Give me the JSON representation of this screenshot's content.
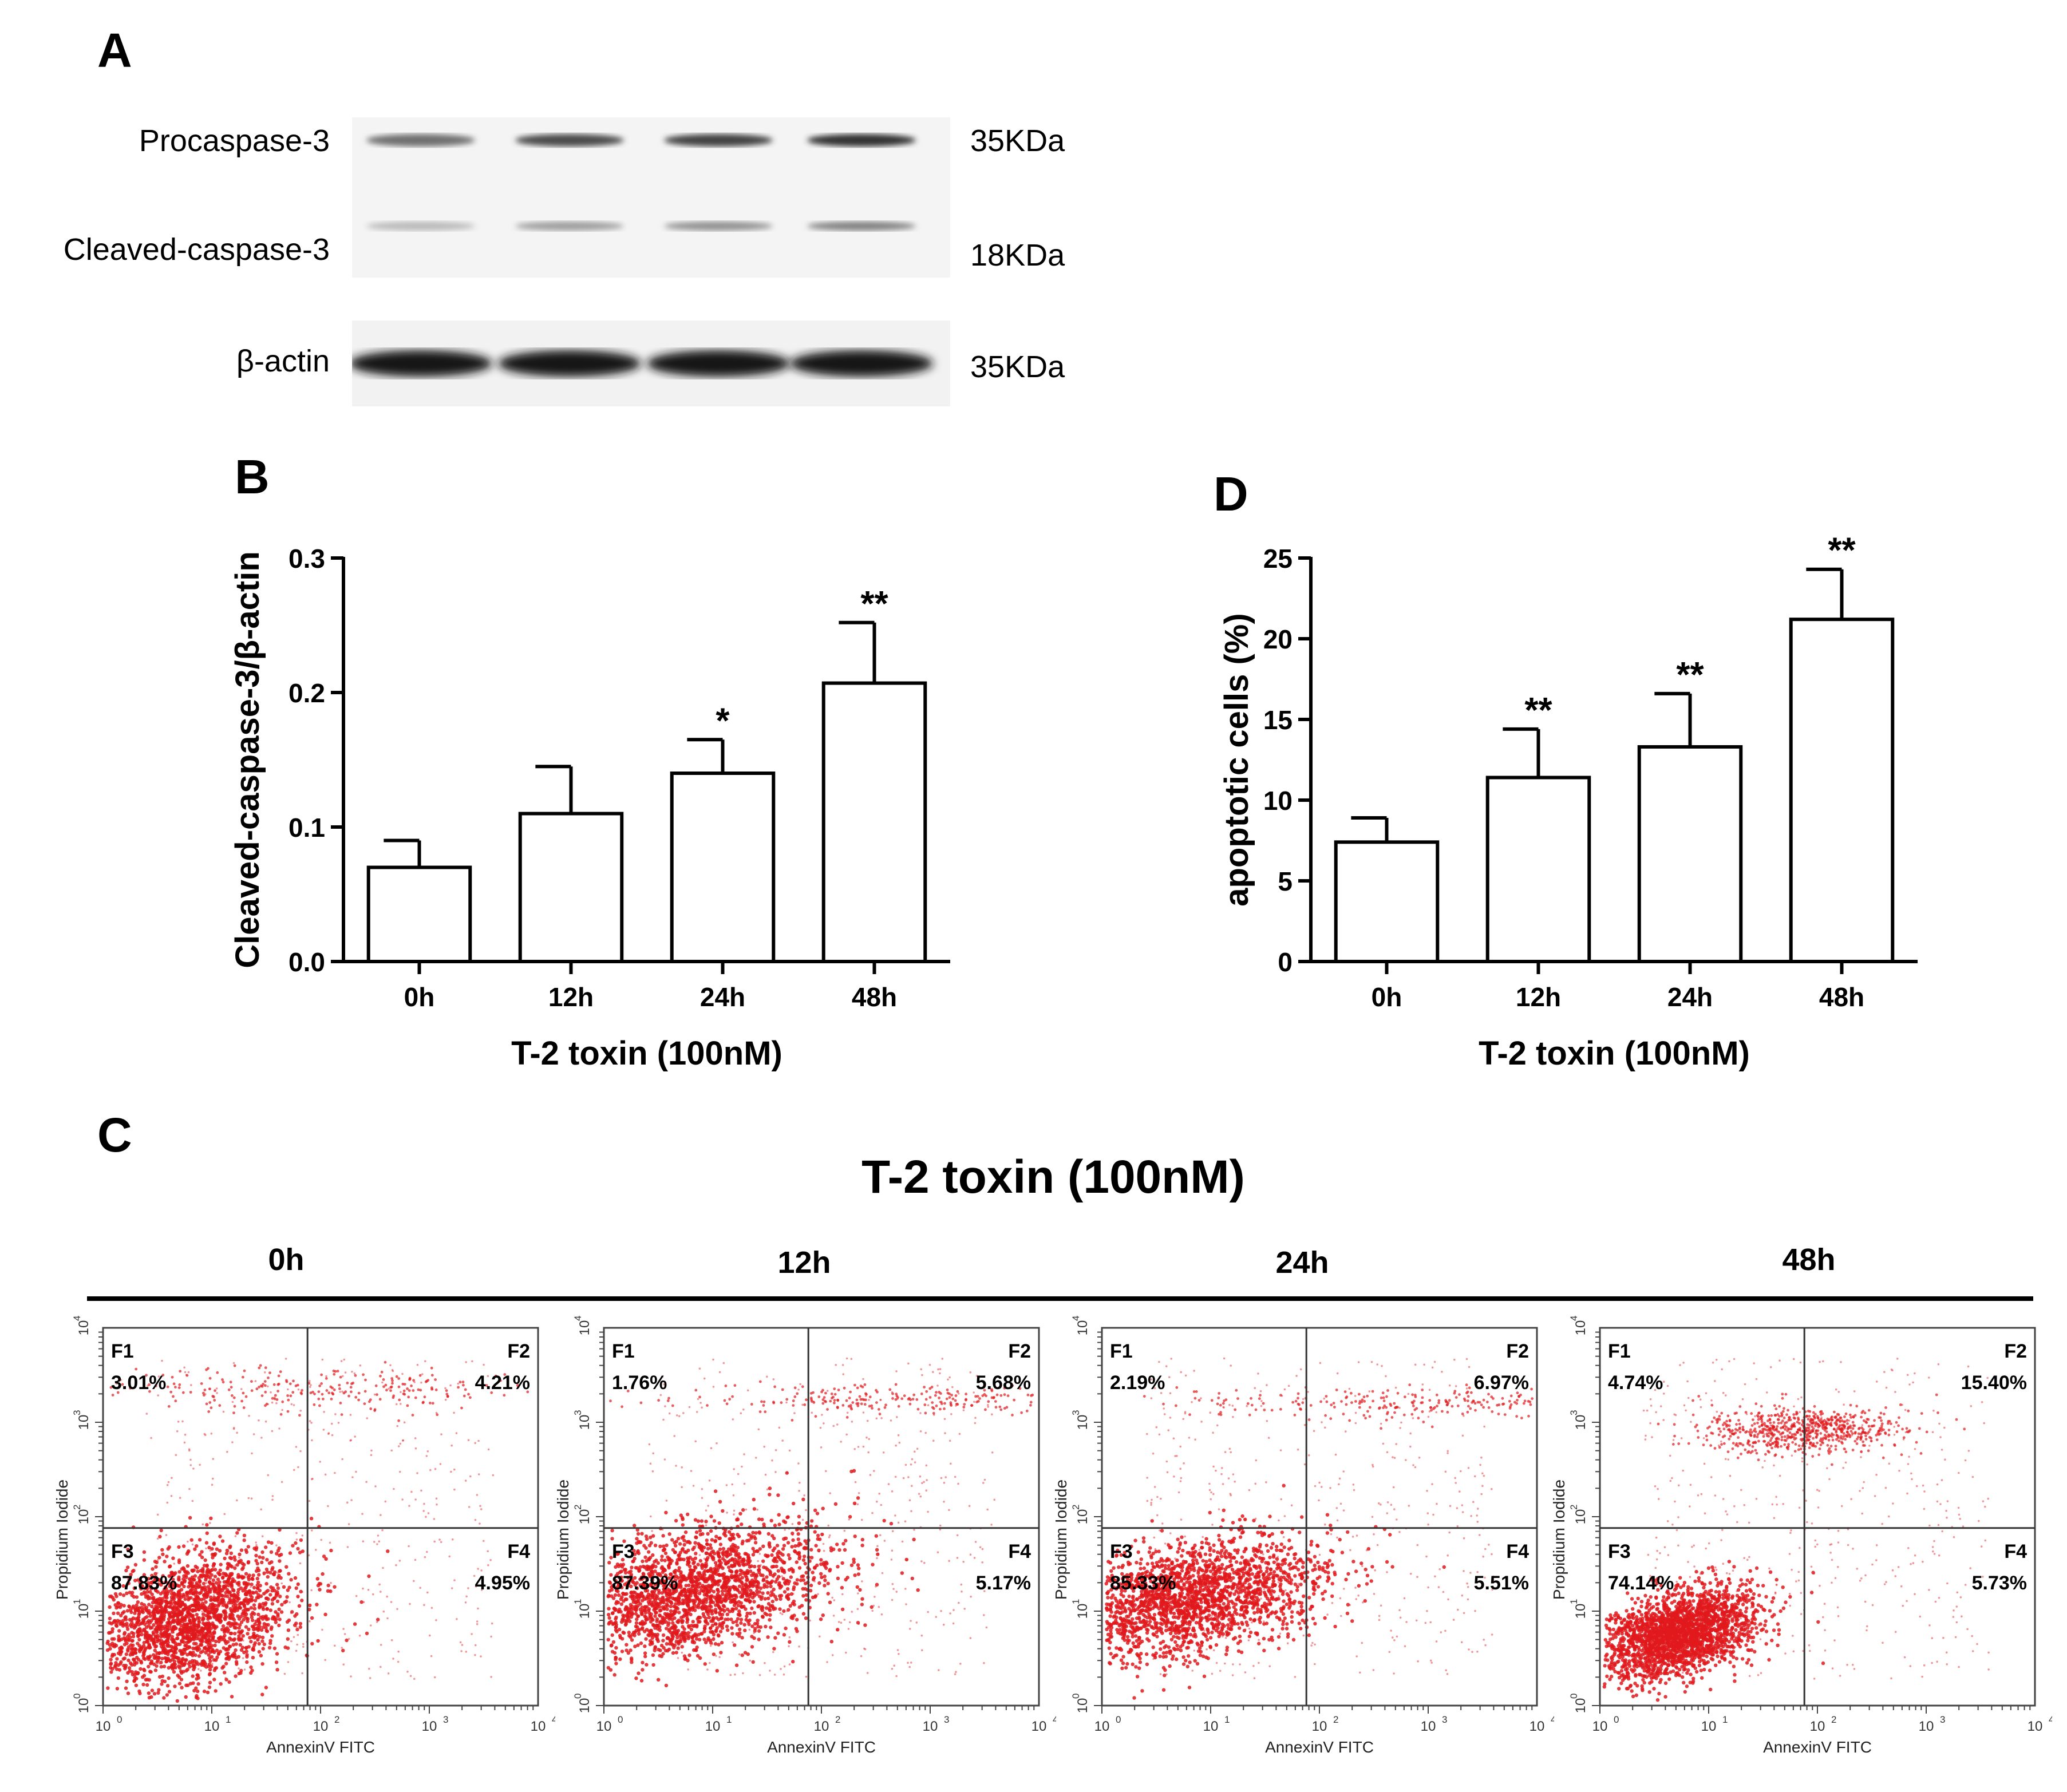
{
  "panels": {
    "a": "A",
    "b": "B",
    "c": "C",
    "d": "D"
  },
  "western_blot": {
    "rows": [
      {
        "label": "Procaspase-3",
        "size": "35KDa",
        "bands": [
          0.62,
          0.78,
          0.82,
          0.9
        ]
      },
      {
        "label": "Cleaved-caspase-3",
        "size": "18KDa",
        "bands": [
          0.3,
          0.42,
          0.48,
          0.55
        ]
      },
      {
        "label": "β-actin",
        "size": "35KDa",
        "bands": [
          1.0,
          1.0,
          1.0,
          1.0
        ]
      }
    ]
  },
  "chart_data": [
    {
      "id": "B",
      "type": "bar",
      "categories": [
        "0h",
        "12h",
        "24h",
        "48h"
      ],
      "values": [
        0.07,
        0.11,
        0.14,
        0.207
      ],
      "errors": [
        0.02,
        0.035,
        0.025,
        0.045
      ],
      "significance": [
        "",
        "",
        "*",
        "**"
      ],
      "ylabel": "Cleaved-caspase-3/β-actin",
      "xlabel": "T-2 toxin (100nM)",
      "ylim": [
        0,
        0.3
      ],
      "yticks": [
        0.0,
        0.1,
        0.2,
        0.3
      ],
      "ytick_labels": [
        "0.0",
        "0.1",
        "0.2",
        "0.3"
      ]
    },
    {
      "id": "D",
      "type": "bar",
      "categories": [
        "0h",
        "12h",
        "24h",
        "48h"
      ],
      "values": [
        7.4,
        11.4,
        13.3,
        21.2
      ],
      "errors": [
        1.5,
        3.0,
        3.3,
        3.1
      ],
      "significance": [
        "",
        "**",
        "**",
        "**"
      ],
      "ylabel": "apoptotic cells (%)",
      "xlabel": "T-2 toxin (100nM)",
      "ylim": [
        0,
        25
      ],
      "yticks": [
        0,
        5,
        10,
        15,
        20,
        25
      ],
      "ytick_labels": [
        "0",
        "5",
        "10",
        "15",
        "20",
        "25"
      ]
    }
  ],
  "flow": {
    "title": "T-2 toxin (100nM)",
    "xlabel": "AnnexinV FITC",
    "ylabel": "Propidium Iodide",
    "axis_ticks": [
      "10",
      "10",
      "10",
      "10",
      "10"
    ],
    "axis_exponents": [
      "0",
      "1",
      "2",
      "3",
      "4"
    ],
    "quadrant_names": [
      "F1",
      "F2",
      "F3",
      "F4"
    ],
    "panels": [
      {
        "time": "0h",
        "F1": "3.01%",
        "F2": "4.21%",
        "F3": "87.83%",
        "F4": "4.95%"
      },
      {
        "time": "12h",
        "F1": "1.76%",
        "F2": "5.68%",
        "F3": "87.39%",
        "F4": "5.17%"
      },
      {
        "time": "24h",
        "F1": "2.19%",
        "F2": "6.97%",
        "F3": "85.33%",
        "F4": "5.51%"
      },
      {
        "time": "48h",
        "F1": "4.74%",
        "F2": "15.40%",
        "F3": "74.14%",
        "F4": "5.73%"
      }
    ]
  }
}
